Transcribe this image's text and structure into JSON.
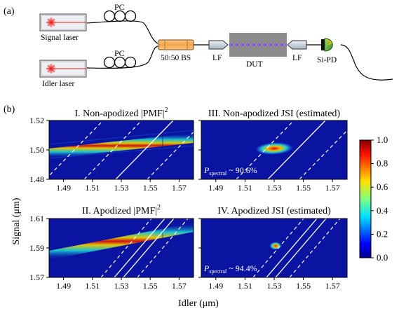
{
  "part_a": {
    "label": "(a)",
    "signal_laser": "Signal laser",
    "idler_laser": "Idler laser",
    "pc_top": "PC",
    "pc_bottom": "PC",
    "bs": "50:50 BS",
    "lf_left": "LF",
    "lf_right": "LF",
    "dut": "DUT",
    "si_pd": "Si-PD"
  },
  "part_b": {
    "label": "(b)",
    "ylabel": "Signal (μm)",
    "xlabel": "Idler (μm)",
    "titles": {
      "p1": "I. Non-apodized |PMF|",
      "p1_sup": "2",
      "p2": "III. Non-apodized JSI (estimated)",
      "p3": "II. Apodized |PMF|",
      "p3_sup": "2",
      "p4": "IV. Apodized JSI (estimated)"
    },
    "purity": {
      "p2": {
        "prefix": "P",
        "sub": "spectral",
        "value": " ~ 90.6%"
      },
      "p4": {
        "prefix": "P",
        "sub": "spectral",
        "value": " ~ 94.4%"
      }
    },
    "xticks": [
      "1.49",
      "1.51",
      "1.53",
      "1.55",
      "1.57"
    ],
    "yticks_top": [
      "1.52",
      "1.50",
      "1.48"
    ],
    "yticks_bottom": [
      "1.61",
      "1.59",
      "1.57"
    ],
    "colorbar_ticks": [
      "1.0",
      "0.8",
      "0.6",
      "0.4",
      "0.2",
      "0.0"
    ]
  },
  "colors": {
    "map_bg": "#0a14a0",
    "band_core": "#d11",
    "band_mid": "#e8d000",
    "band_edge": "#18c8d8",
    "dut_gray": "#8c8c8c",
    "dut_beam": "#8a4dff",
    "bs_orange": "#f3a54a"
  },
  "chart_data": [
    {
      "type": "heatmap",
      "title": "I. Non-apodized |PMF|2",
      "xlim": [
        1.48,
        1.58
      ],
      "ylim": [
        1.48,
        1.52
      ],
      "ridge": {
        "x": [
          1.48,
          1.58
        ],
        "y": [
          1.496,
          1.507
        ]
      }
    },
    {
      "type": "heatmap",
      "title": "III. Non-apodized JSI (estimated)",
      "xlim": [
        1.48,
        1.58
      ],
      "ylim": [
        1.48,
        1.52
      ],
      "peak": {
        "x": 1.53,
        "y": 1.501
      }
    },
    {
      "type": "heatmap",
      "title": "II. Apodized |PMF|2",
      "xlim": [
        1.48,
        1.58
      ],
      "ylim": [
        1.57,
        1.61
      ],
      "ridge": {
        "x": [
          1.48,
          1.58
        ],
        "y": [
          1.584,
          1.602
        ]
      }
    },
    {
      "type": "heatmap",
      "title": "IV. Apodized JSI (estimated)",
      "xlim": [
        1.48,
        1.58
      ],
      "ylim": [
        1.57,
        1.61
      ],
      "peak": {
        "x": 1.53,
        "y": 1.592
      }
    }
  ]
}
